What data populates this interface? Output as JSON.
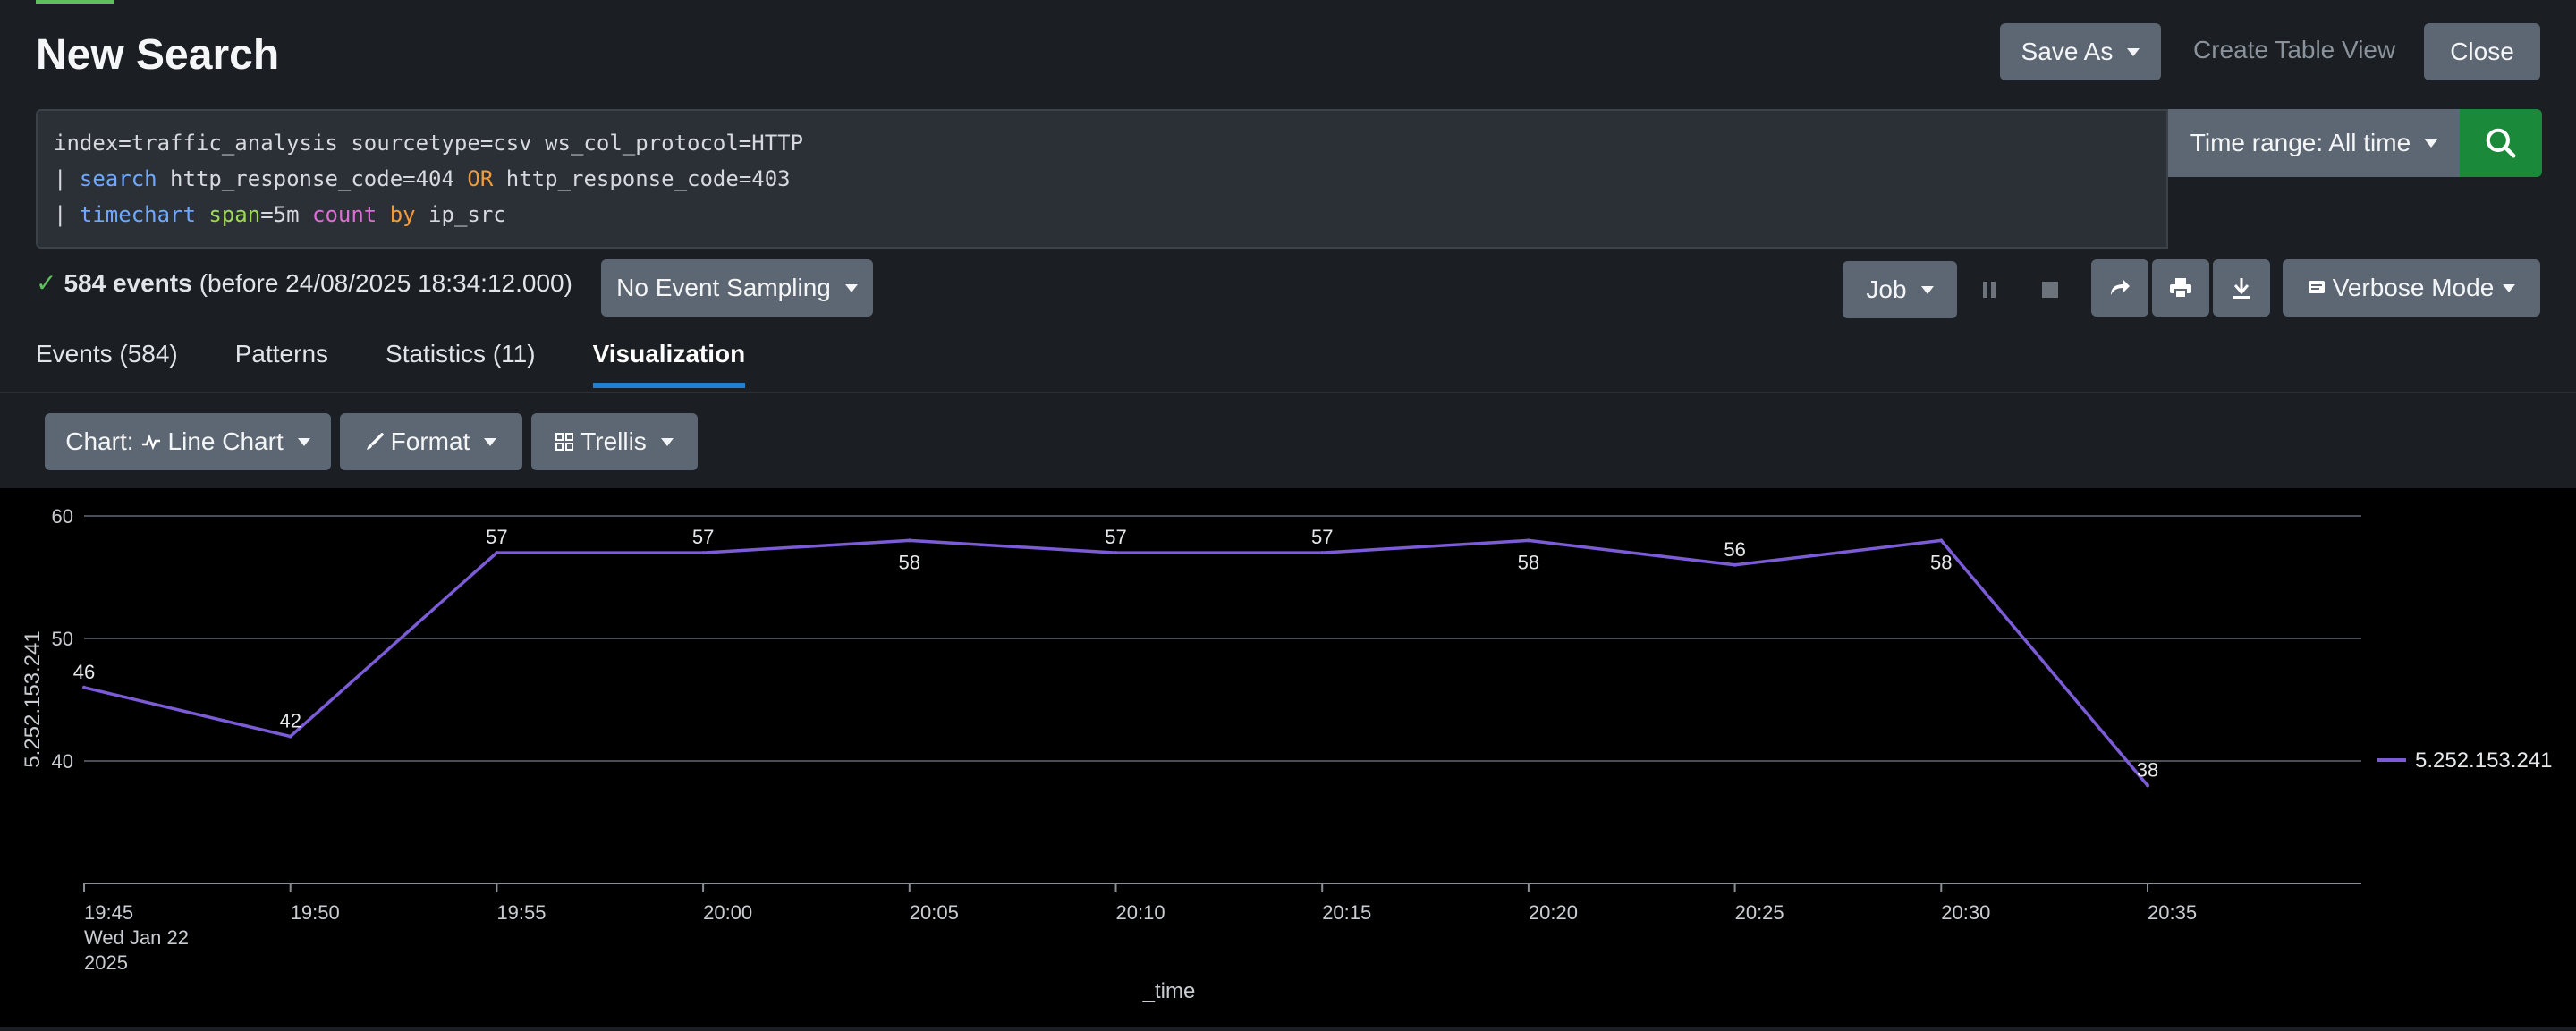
{
  "header": {
    "title": "New Search",
    "save_as": "Save As",
    "create_table_view": "Create Table View",
    "close": "Close"
  },
  "search": {
    "line1": "index=traffic_analysis sourcetype=csv ws_col_protocol=HTTP",
    "line2": {
      "pipe": "| ",
      "cmd": "search",
      "a": " http_response_code=404 ",
      "op": "OR",
      "b": " http_response_code=403"
    },
    "line3": {
      "pipe": "| ",
      "cmd": "timechart",
      "sp": " ",
      "arg": "span",
      "argval": "=5m ",
      "func": "count",
      "sp2": " ",
      "by": "by",
      "field": " ip_src"
    },
    "time_range": "Time range: All time"
  },
  "status": {
    "check": "✓",
    "count": "584 events",
    "before": "(before 24/08/2025 18:34:12.000)",
    "sampling": "No Event Sampling"
  },
  "job_bar": {
    "job": "Job",
    "mode": "Verbose Mode",
    "icons": [
      "pause-icon",
      "stop-icon",
      "share-icon",
      "print-icon",
      "export-icon"
    ]
  },
  "tabs": [
    {
      "label": "Events (584)"
    },
    {
      "label": "Patterns"
    },
    {
      "label": "Statistics (11)"
    },
    {
      "label": "Visualization",
      "active": true
    }
  ],
  "viz_toolbar": {
    "chart": "Chart: ",
    "chart_type": "Line Chart",
    "format": "Format",
    "trellis": "Trellis"
  },
  "colors": {
    "accent_blue": "#1f7fd1",
    "search_green": "#1a8a3a",
    "series": "#7b5bd6"
  },
  "chart_data": {
    "type": "line",
    "x": [
      "19:45",
      "19:50",
      "19:55",
      "20:00",
      "20:05",
      "20:10",
      "20:15",
      "20:20",
      "20:25",
      "20:30",
      "20:35"
    ],
    "x_first_sublabels": [
      "Wed Jan 22",
      "2025"
    ],
    "series": [
      {
        "name": "5.252.153.241",
        "values": [
          46,
          42,
          57,
          57,
          58,
          57,
          57,
          58,
          56,
          58,
          38
        ]
      }
    ],
    "value_labels": [
      "46",
      "42",
      "57",
      "57",
      "58",
      "57",
      "57",
      "58",
      "56",
      "58",
      "38"
    ],
    "label_above": [
      true,
      true,
      true,
      true,
      false,
      true,
      true,
      false,
      true,
      false,
      true
    ],
    "y_ticks": [
      "40",
      "50",
      "60"
    ],
    "ylim": [
      30,
      60
    ],
    "xlabel": "_time",
    "ylabel": "5.252.153.241",
    "grid": true,
    "legend": "right"
  }
}
